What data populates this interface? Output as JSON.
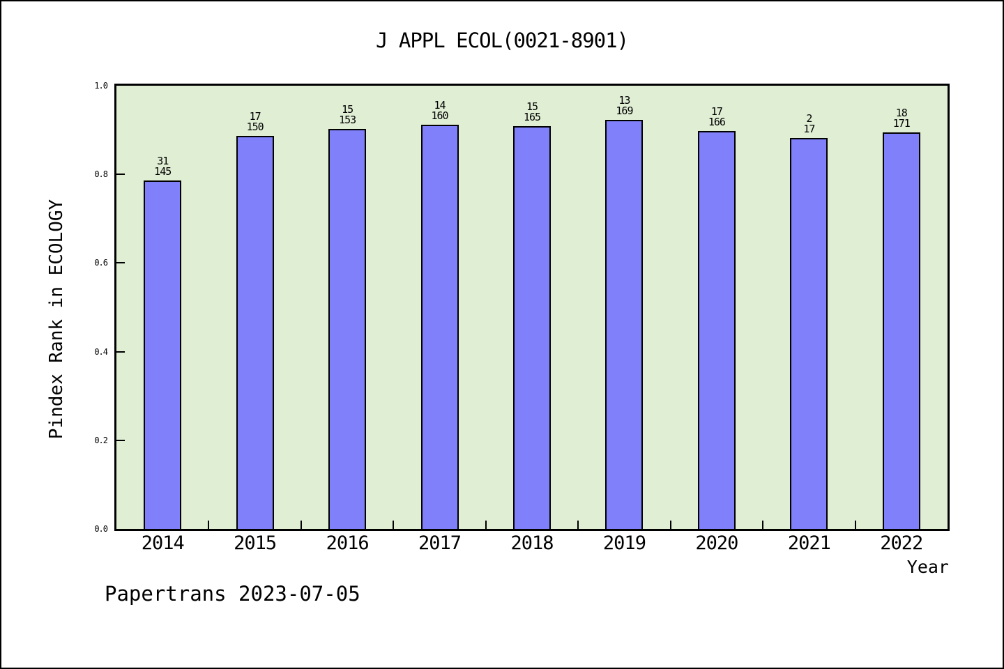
{
  "title": "J APPL ECOL(0021-8901)",
  "footer": "Papertrans 2023-07-05",
  "colors": {
    "bar_fill": "#8080fa",
    "bar_border": "#000000",
    "plot_background": "#e0eed4",
    "page_background": "#ffffff",
    "axis_color": "#000000"
  },
  "chart_data": {
    "type": "bar",
    "title": "J APPL ECOL(0021-8901)",
    "xlabel": "Year",
    "ylabel": "Pindex Rank in ECOLOGY",
    "ylim": [
      0.0,
      1.0
    ],
    "yticks": [
      "0.0",
      "0.2",
      "0.4",
      "0.6",
      "0.8",
      "1.0"
    ],
    "grid": "off",
    "legend": "none",
    "categories": [
      "2014",
      "2015",
      "2016",
      "2017",
      "2018",
      "2019",
      "2020",
      "2021",
      "2022"
    ],
    "bars": [
      {
        "year": "2014",
        "rank": 31,
        "total": 145,
        "value": 0.7862
      },
      {
        "year": "2015",
        "rank": 17,
        "total": 150,
        "value": 0.8867
      },
      {
        "year": "2016",
        "rank": 15,
        "total": 153,
        "value": 0.902
      },
      {
        "year": "2017",
        "rank": 14,
        "total": 160,
        "value": 0.9125
      },
      {
        "year": "2018",
        "rank": 15,
        "total": 165,
        "value": 0.9091
      },
      {
        "year": "2019",
        "rank": 13,
        "total": 169,
        "value": 0.9231
      },
      {
        "year": "2020",
        "rank": 17,
        "total": 166,
        "value": 0.8976
      },
      {
        "year": "2021",
        "rank": 2,
        "total": 17,
        "value": 0.8824
      },
      {
        "year": "2022",
        "rank": 18,
        "total": 171,
        "value": 0.8947
      }
    ]
  }
}
